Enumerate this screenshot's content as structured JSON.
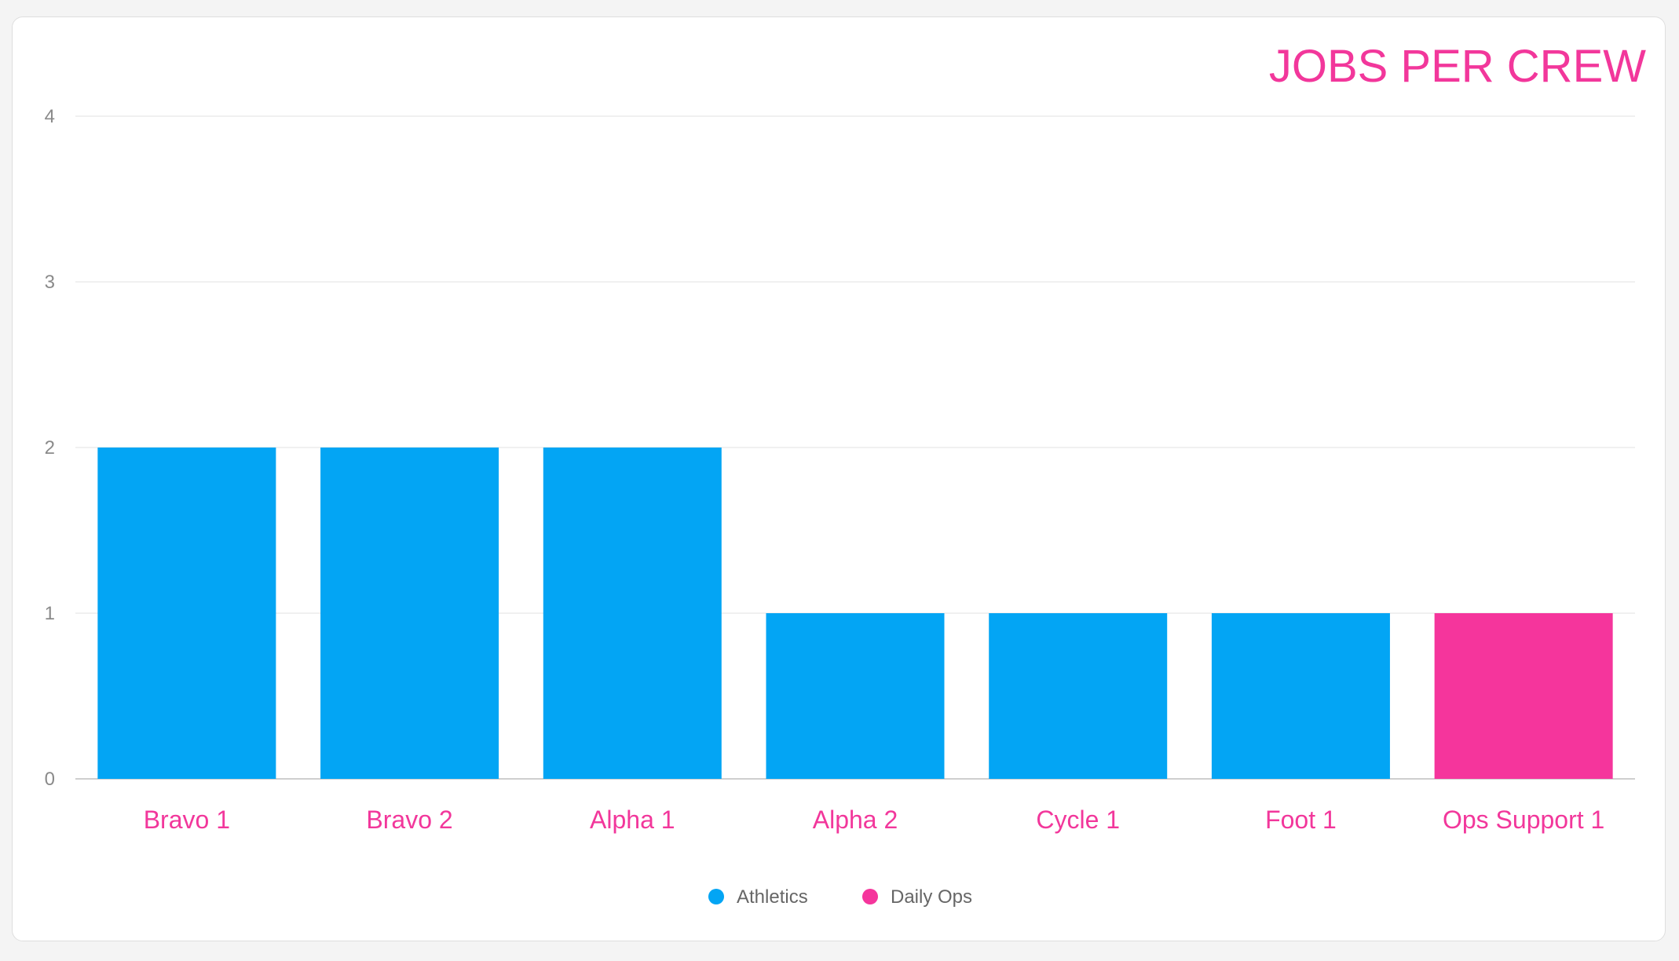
{
  "chart_data": {
    "type": "bar",
    "title": "JOBS PER CREW",
    "xlabel": "",
    "ylabel": "",
    "ylim": [
      0,
      4
    ],
    "yticks": [
      "0",
      "1",
      "2",
      "3",
      "4"
    ],
    "categories": [
      "Bravo 1",
      "Bravo 2",
      "Alpha 1",
      "Alpha 2",
      "Cycle 1",
      "Foot 1",
      "Ops Support 1"
    ],
    "series": [
      {
        "name": "Athletics",
        "color": "#03a5f4",
        "values": [
          2,
          2,
          2,
          1,
          1,
          1,
          0
        ]
      },
      {
        "name": "Daily Ops",
        "color": "#f5359c",
        "values": [
          0,
          0,
          0,
          0,
          0,
          0,
          1
        ]
      }
    ],
    "stacked": true,
    "grid": true,
    "legend": "bottom-center"
  },
  "colors": {
    "title": "#f2379b",
    "category_label": "#f2379b",
    "grid": "#ececec",
    "axis": "#cfcfcf"
  }
}
